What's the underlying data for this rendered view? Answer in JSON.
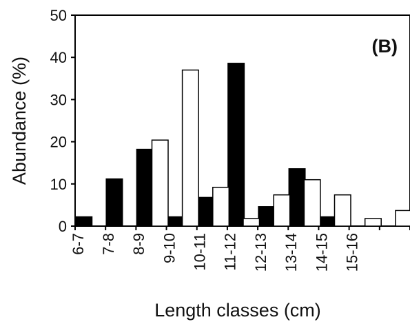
{
  "chart_data": {
    "type": "bar",
    "title": "",
    "panel_label": "(B)",
    "xlabel": "Length classes (cm)",
    "ylabel": "Abundance (%)",
    "ylim": [
      0,
      50
    ],
    "yticks": [
      0,
      10,
      20,
      30,
      40,
      50
    ],
    "categories": [
      "6-7",
      "7-8",
      "8-9",
      "9-10",
      "10-11",
      "11-12",
      "12-13",
      "13-14",
      "14-15",
      "15-16",
      ""
    ],
    "series": [
      {
        "fill": "#000000",
        "values": [
          2.2,
          11.2,
          18.2,
          2.2,
          6.8,
          38.6,
          4.6,
          13.6,
          2.2,
          null,
          null
        ]
      },
      {
        "fill": "#ffffff",
        "values": [
          null,
          null,
          20.4,
          37.0,
          9.2,
          1.8,
          7.4,
          11.0,
          7.4,
          1.8,
          3.7
        ]
      }
    ],
    "grid": false,
    "legend": "none"
  }
}
